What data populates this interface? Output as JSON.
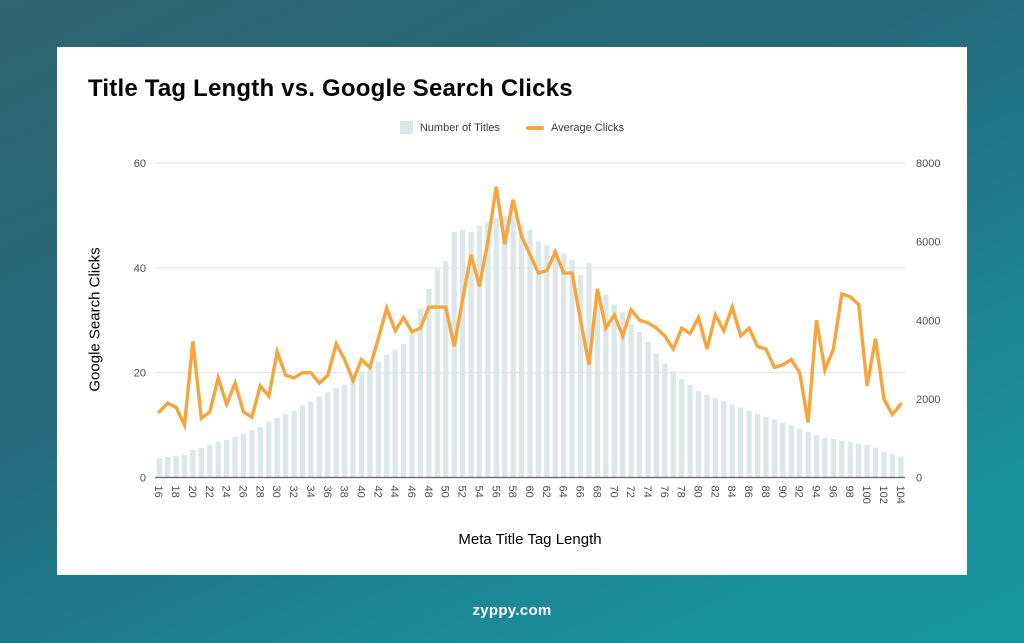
{
  "footer": {
    "brand": "zyppy.com"
  },
  "colors": {
    "background_top": "#2F6470",
    "background_bottom": "#18969F",
    "card": "#FFFFFF",
    "bar": "#DCE7EA",
    "line": "#F6A43C",
    "gridline": "#E2E2E2",
    "axis_line": "#616161",
    "tick_label": "#4D4D4D"
  },
  "chart_data": {
    "type": "bar",
    "subtype": "bar+line dual axis",
    "title": "Title Tag Length vs. Google Search Clicks",
    "xlabel": "Meta Title Tag Length",
    "ylabel": "Google Search Clicks",
    "legend_position": "top-center",
    "grid": "horizontal",
    "x_tick_label_step": 2,
    "x_tick_rotation": 90,
    "left_axis": {
      "ticks": [
        0,
        20,
        40,
        60
      ],
      "range": [
        0,
        60
      ]
    },
    "right_axis": {
      "ticks": [
        0,
        2000,
        4000,
        6000,
        8000
      ],
      "range": [
        0,
        8000
      ]
    },
    "x": [
      16,
      17,
      18,
      19,
      20,
      21,
      22,
      23,
      24,
      25,
      26,
      27,
      28,
      29,
      30,
      31,
      32,
      33,
      34,
      35,
      36,
      37,
      38,
      39,
      40,
      41,
      42,
      43,
      44,
      45,
      46,
      47,
      48,
      49,
      50,
      51,
      52,
      53,
      54,
      55,
      56,
      57,
      58,
      59,
      60,
      61,
      62,
      63,
      64,
      65,
      66,
      67,
      68,
      69,
      70,
      71,
      72,
      73,
      74,
      75,
      76,
      77,
      78,
      79,
      80,
      81,
      82,
      83,
      84,
      85,
      86,
      87,
      88,
      89,
      90,
      91,
      92,
      93,
      94,
      95,
      96,
      97,
      98,
      99,
      100,
      101,
      102,
      103,
      104
    ],
    "series": [
      {
        "name": "Number of Titles",
        "type": "bar",
        "axis": "right",
        "color": "#DCE7EA",
        "values": [
          500,
          520,
          540,
          570,
          700,
          750,
          830,
          910,
          960,
          1040,
          1100,
          1210,
          1280,
          1420,
          1510,
          1610,
          1700,
          1830,
          1930,
          2060,
          2170,
          2270,
          2360,
          2530,
          2700,
          2820,
          2950,
          3120,
          3250,
          3400,
          3650,
          4300,
          4800,
          5300,
          5500,
          6250,
          6300,
          6250,
          6400,
          6500,
          6600,
          6650,
          6650,
          6400,
          6300,
          6000,
          5900,
          5800,
          5700,
          5550,
          5150,
          5450,
          4600,
          4650,
          4400,
          4200,
          3900,
          3700,
          3450,
          3150,
          2900,
          2700,
          2500,
          2350,
          2200,
          2100,
          2020,
          1940,
          1860,
          1780,
          1700,
          1620,
          1550,
          1480,
          1400,
          1320,
          1240,
          1160,
          1080,
          1010,
          980,
          940,
          900,
          860,
          830,
          760,
          660,
          590,
          530
        ]
      },
      {
        "name": "Average Clicks",
        "type": "line",
        "axis": "left",
        "color": "#F6A43C",
        "values": [
          12.5,
          14.2,
          13.4,
          10,
          26,
          11.3,
          12.5,
          19,
          14,
          18,
          12.5,
          11.5,
          17.5,
          15.5,
          24,
          19.5,
          19,
          20,
          20,
          18,
          19.5,
          25.5,
          22.5,
          18.5,
          22.5,
          21,
          26.5,
          32.3,
          28,
          30.5,
          27.8,
          28.5,
          32.5,
          32.5,
          32.5,
          25,
          34,
          42.5,
          36.5,
          45,
          55.5,
          44.5,
          53,
          46,
          42.5,
          39,
          39.5,
          43,
          39,
          39,
          30,
          21.5,
          36,
          28.5,
          31,
          27,
          32,
          30,
          29.5,
          28.5,
          27,
          24.5,
          28.5,
          27.5,
          30.5,
          24.5,
          31,
          28,
          32.5,
          27,
          28.5,
          25,
          24.5,
          21,
          21.5,
          22.5,
          20,
          10.5,
          30,
          20.5,
          24.5,
          35,
          34.5,
          33,
          17.5,
          26.5,
          15,
          12,
          14
        ]
      }
    ]
  }
}
